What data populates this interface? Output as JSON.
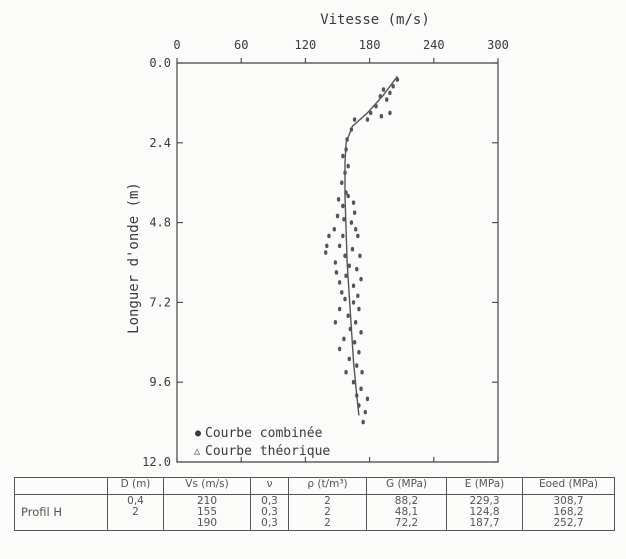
{
  "chart_data": {
    "type": "scatter",
    "title": "",
    "xlabel": "Vitesse (m/s)",
    "ylabel": "Longuer d'onde (m)",
    "xlim": [
      0,
      300
    ],
    "ylim": [
      0,
      12
    ],
    "x_axis_position": "top",
    "y_inverted": true,
    "xticks": [
      "0",
      "60",
      "120",
      "180",
      "240",
      "300"
    ],
    "yticks": [
      "0.0",
      "2.4",
      "4.8",
      "7.2",
      "9.6",
      "12.0"
    ],
    "legend_position": "bottom-left",
    "series": [
      {
        "name": "Courbe combinée",
        "marker": "filled-dot",
        "points": [
          [
            206,
            0.5
          ],
          [
            202,
            0.7
          ],
          [
            199,
            0.9
          ],
          [
            193,
            0.8
          ],
          [
            196,
            1.1
          ],
          [
            190,
            1.0
          ],
          [
            186,
            1.3
          ],
          [
            199,
            1.5
          ],
          [
            191,
            1.6
          ],
          [
            181,
            1.5
          ],
          [
            178,
            1.7
          ],
          [
            166,
            1.7
          ],
          [
            163,
            2.0
          ],
          [
            159,
            2.3
          ],
          [
            155,
            2.8
          ],
          [
            158,
            2.6
          ],
          [
            160,
            3.1
          ],
          [
            157,
            3.3
          ],
          [
            154,
            3.6
          ],
          [
            158,
            3.9
          ],
          [
            151,
            4.1
          ],
          [
            160,
            4.0
          ],
          [
            165,
            4.2
          ],
          [
            155,
            4.3
          ],
          [
            150,
            4.6
          ],
          [
            166,
            4.5
          ],
          [
            156,
            4.7
          ],
          [
            163,
            4.8
          ],
          [
            147,
            5.0
          ],
          [
            167,
            5.0
          ],
          [
            142,
            5.2
          ],
          [
            155,
            5.2
          ],
          [
            169,
            5.2
          ],
          [
            140,
            5.5
          ],
          [
            152,
            5.5
          ],
          [
            164,
            5.6
          ],
          [
            139,
            5.7
          ],
          [
            157,
            5.8
          ],
          [
            171,
            5.8
          ],
          [
            148,
            6.0
          ],
          [
            161,
            6.1
          ],
          [
            168,
            6.2
          ],
          [
            149,
            6.3
          ],
          [
            158,
            6.4
          ],
          [
            172,
            6.5
          ],
          [
            152,
            6.6
          ],
          [
            165,
            6.7
          ],
          [
            154,
            6.9
          ],
          [
            169,
            7.0
          ],
          [
            157,
            7.1
          ],
          [
            165,
            7.2
          ],
          [
            152,
            7.4
          ],
          [
            170,
            7.4
          ],
          [
            160,
            7.6
          ],
          [
            167,
            7.8
          ],
          [
            148,
            7.8
          ],
          [
            162,
            8.0
          ],
          [
            172,
            8.1
          ],
          [
            156,
            8.3
          ],
          [
            166,
            8.4
          ],
          [
            152,
            8.6
          ],
          [
            170,
            8.7
          ],
          [
            161,
            8.9
          ],
          [
            168,
            9.1
          ],
          [
            158,
            9.3
          ],
          [
            173,
            9.3
          ],
          [
            165,
            9.6
          ],
          [
            172,
            9.8
          ],
          [
            168,
            10.0
          ],
          [
            178,
            10.1
          ],
          [
            170,
            10.3
          ],
          [
            176,
            10.5
          ],
          [
            174,
            10.8
          ]
        ]
      },
      {
        "name": "Courbe théorique",
        "marker": "open-triangle",
        "points": [
          [
            206,
            0.4
          ],
          [
            192,
            1.0
          ],
          [
            178,
            1.5
          ],
          [
            164,
            1.9
          ],
          [
            158,
            2.4
          ],
          [
            157,
            3.0
          ],
          [
            157,
            4.0
          ],
          [
            158,
            5.0
          ],
          [
            159,
            6.0
          ],
          [
            161,
            7.0
          ],
          [
            163,
            8.0
          ],
          [
            165,
            9.0
          ],
          [
            168,
            10.0
          ],
          [
            170,
            10.6
          ]
        ]
      }
    ]
  },
  "table": {
    "headers": [
      "",
      "D (m)",
      "Vs (m/s)",
      "ν",
      "ρ (t/m³)",
      "G (MPa)",
      "E (MPa)",
      "Eoed (MPa)"
    ],
    "row_label": "Profil   H",
    "cols": {
      "d": [
        "0,4",
        "2",
        ""
      ],
      "vs": [
        "210",
        "155",
        "190"
      ],
      "nu": [
        "0,3",
        "0,3",
        "0,3"
      ],
      "rho": [
        "2",
        "2",
        "2"
      ],
      "g": [
        "88,2",
        "48,1",
        "72,2"
      ],
      "e": [
        "229,3",
        "124,8",
        "187,7"
      ],
      "eoed": [
        "308,7",
        "168,2",
        "252,7"
      ]
    }
  }
}
